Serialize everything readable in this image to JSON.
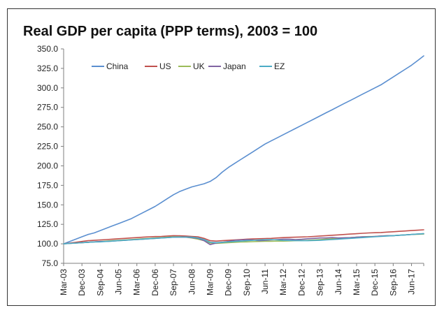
{
  "chart_data": {
    "type": "line",
    "title": "Real GDP per capita (PPP terms), 2003 = 100",
    "xlabel": "",
    "ylabel": "",
    "ylim": [
      75,
      350
    ],
    "yticks": [
      "75.0",
      "100.0",
      "125.0",
      "150.0",
      "175.0",
      "200.0",
      "225.0",
      "250.0",
      "275.0",
      "300.0",
      "325.0",
      "350.0"
    ],
    "categories": [
      "Mar-03",
      "Dec-03",
      "Sep-04",
      "Jun-05",
      "Mar-06",
      "Dec-06",
      "Sep-07",
      "Jun-08",
      "Mar-09",
      "Dec-09",
      "Sep-10",
      "Jun-11",
      "Mar-12",
      "Dec-12",
      "Sep-13",
      "Jun-14",
      "Mar-15",
      "Dec-15",
      "Sep-16",
      "Jun-17"
    ],
    "x_end": "Dec-17",
    "x": [
      "Mar-03",
      "Jun-03",
      "Sep-03",
      "Dec-03",
      "Mar-04",
      "Jun-04",
      "Sep-04",
      "Dec-04",
      "Mar-05",
      "Jun-05",
      "Sep-05",
      "Dec-05",
      "Mar-06",
      "Jun-06",
      "Sep-06",
      "Dec-06",
      "Mar-07",
      "Jun-07",
      "Sep-07",
      "Dec-07",
      "Mar-08",
      "Jun-08",
      "Sep-08",
      "Dec-08",
      "Mar-09",
      "Jun-09",
      "Sep-09",
      "Dec-09",
      "Mar-10",
      "Jun-10",
      "Sep-10",
      "Dec-10",
      "Mar-11",
      "Jun-11",
      "Sep-11",
      "Dec-11",
      "Mar-12",
      "Jun-12",
      "Sep-12",
      "Dec-12",
      "Mar-13",
      "Jun-13",
      "Sep-13",
      "Dec-13",
      "Mar-14",
      "Jun-14",
      "Sep-14",
      "Dec-14",
      "Mar-15",
      "Jun-15",
      "Sep-15",
      "Dec-15",
      "Mar-16",
      "Jun-16",
      "Sep-16",
      "Dec-16",
      "Mar-17",
      "Jun-17",
      "Sep-17",
      "Dec-17"
    ],
    "legend_position": "top-left",
    "grid": false,
    "series": [
      {
        "name": "China",
        "color": "#5b8fd0",
        "values": [
          100.0,
          103.0,
          106.0,
          109.0,
          112.0,
          114.0,
          117.0,
          120.0,
          123.0,
          126.0,
          129.0,
          132.0,
          136.0,
          140.0,
          144.0,
          148.0,
          153.0,
          158.0,
          163.0,
          167.0,
          170.0,
          173.0,
          175.0,
          177.0,
          180.0,
          185.0,
          192.0,
          198.0,
          203.0,
          208.0,
          213.0,
          218.0,
          223.0,
          228.0,
          232.0,
          236.0,
          240.0,
          244.0,
          248.0,
          252.0,
          256.0,
          260.0,
          264.0,
          268.0,
          272.0,
          276.0,
          280.0,
          284.0,
          288.0,
          292.0,
          296.0,
          300.0,
          304.0,
          309.0,
          314.0,
          319.0,
          324.0,
          329.0,
          335.0,
          341.0
        ]
      },
      {
        "name": "US",
        "color": "#c0504d",
        "values": [
          100.0,
          101.0,
          102.0,
          103.0,
          104.0,
          104.5,
          105.0,
          105.5,
          106.0,
          106.5,
          107.0,
          107.5,
          108.0,
          108.5,
          109.0,
          109.3,
          109.5,
          110.0,
          110.5,
          110.3,
          110.0,
          109.5,
          109.0,
          107.0,
          104.0,
          103.5,
          104.0,
          104.5,
          105.0,
          105.5,
          106.0,
          106.3,
          106.5,
          106.8,
          107.0,
          107.5,
          108.0,
          108.3,
          108.5,
          108.8,
          109.0,
          109.5,
          110.0,
          110.5,
          111.0,
          111.5,
          112.0,
          112.5,
          113.0,
          113.5,
          114.0,
          114.2,
          114.5,
          115.0,
          115.5,
          116.0,
          116.5,
          117.0,
          117.5,
          118.0
        ]
      },
      {
        "name": "UK",
        "color": "#9bbb59",
        "values": [
          100.0,
          100.5,
          101.0,
          101.5,
          102.0,
          102.5,
          103.0,
          103.5,
          104.0,
          104.5,
          105.0,
          105.5,
          106.0,
          106.5,
          107.0,
          107.5,
          108.0,
          108.5,
          109.0,
          109.0,
          108.5,
          107.5,
          106.0,
          104.0,
          101.0,
          100.5,
          101.0,
          101.5,
          102.0,
          102.3,
          102.5,
          102.8,
          103.0,
          103.2,
          103.3,
          103.5,
          103.5,
          103.7,
          104.0,
          104.3,
          104.5,
          105.0,
          105.5,
          106.0,
          106.5,
          107.0,
          107.5,
          108.0,
          108.5,
          109.0,
          109.3,
          109.5,
          110.0,
          110.3,
          110.5,
          111.0,
          111.5,
          112.0,
          112.3,
          112.5
        ]
      },
      {
        "name": "Japan",
        "color": "#8064a2",
        "values": [
          100.0,
          100.5,
          101.0,
          101.5,
          102.0,
          102.5,
          103.0,
          103.0,
          103.5,
          104.0,
          104.5,
          105.0,
          105.5,
          106.0,
          106.5,
          107.0,
          107.5,
          108.0,
          108.5,
          108.5,
          108.5,
          108.0,
          107.0,
          104.0,
          99.0,
          101.0,
          102.0,
          103.0,
          104.5,
          105.0,
          105.5,
          105.0,
          104.0,
          104.5,
          105.0,
          105.5,
          106.0,
          106.0,
          105.5,
          105.8,
          106.5,
          107.0,
          107.5,
          107.5,
          108.0,
          107.5,
          107.8,
          108.0,
          108.5,
          109.0,
          109.0,
          109.5,
          110.0,
          110.5,
          110.5,
          111.0,
          111.5,
          112.0,
          112.5,
          113.0
        ]
      },
      {
        "name": "EZ",
        "color": "#4bacc6",
        "values": [
          100.0,
          100.5,
          101.0,
          101.5,
          102.0,
          102.3,
          102.5,
          103.0,
          103.5,
          104.0,
          104.5,
          105.0,
          105.5,
          106.0,
          106.5,
          107.0,
          107.5,
          108.0,
          108.5,
          108.7,
          108.8,
          108.5,
          107.5,
          105.5,
          102.0,
          101.5,
          102.0,
          102.5,
          103.0,
          103.5,
          104.0,
          104.5,
          105.0,
          105.3,
          105.5,
          105.0,
          104.5,
          104.3,
          104.2,
          104.0,
          104.0,
          104.3,
          104.5,
          105.0,
          105.5,
          106.0,
          106.5,
          107.0,
          107.5,
          108.0,
          108.5,
          109.0,
          109.5,
          110.0,
          110.5,
          111.0,
          111.5,
          112.0,
          112.5,
          113.0
        ]
      }
    ]
  }
}
